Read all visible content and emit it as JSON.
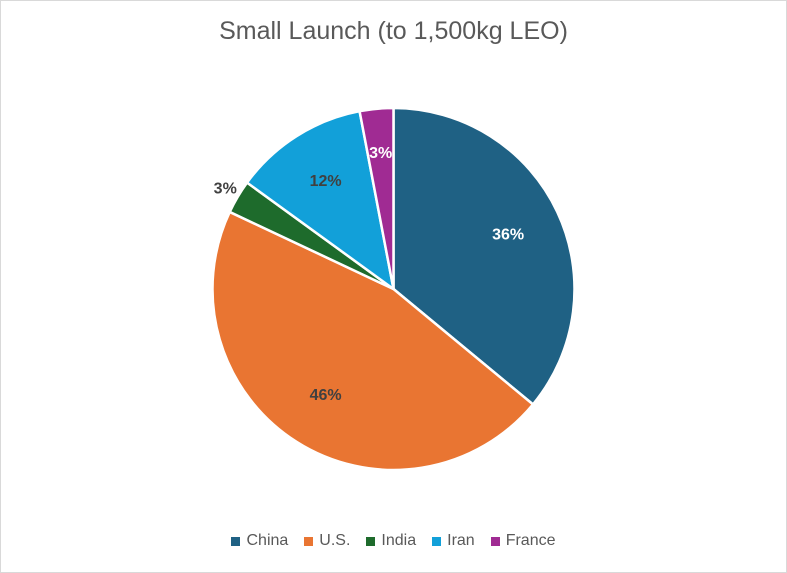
{
  "chart_data": {
    "type": "pie",
    "title": "Small Launch (to 1,500kg LEO)",
    "slices": [
      {
        "name": "China",
        "value": 36,
        "label": "36%",
        "color": "#1f6184",
        "label_color": "#ffffff"
      },
      {
        "name": "U.S.",
        "value": 46,
        "label": "46%",
        "color": "#e97532",
        "label_color": "#404040"
      },
      {
        "name": "India",
        "value": 3,
        "label": "3%",
        "color": "#1e6b2c",
        "label_color": "#404040"
      },
      {
        "name": "Iran",
        "value": 12,
        "label": "12%",
        "color": "#12a0d9",
        "label_color": "#404040"
      },
      {
        "name": "France",
        "value": 3,
        "label": "3%",
        "color": "#a02b93",
        "label_color": "#ffffff"
      }
    ],
    "legend_position": "bottom",
    "start_angle": "12 o'clock",
    "direction": "clockwise"
  }
}
